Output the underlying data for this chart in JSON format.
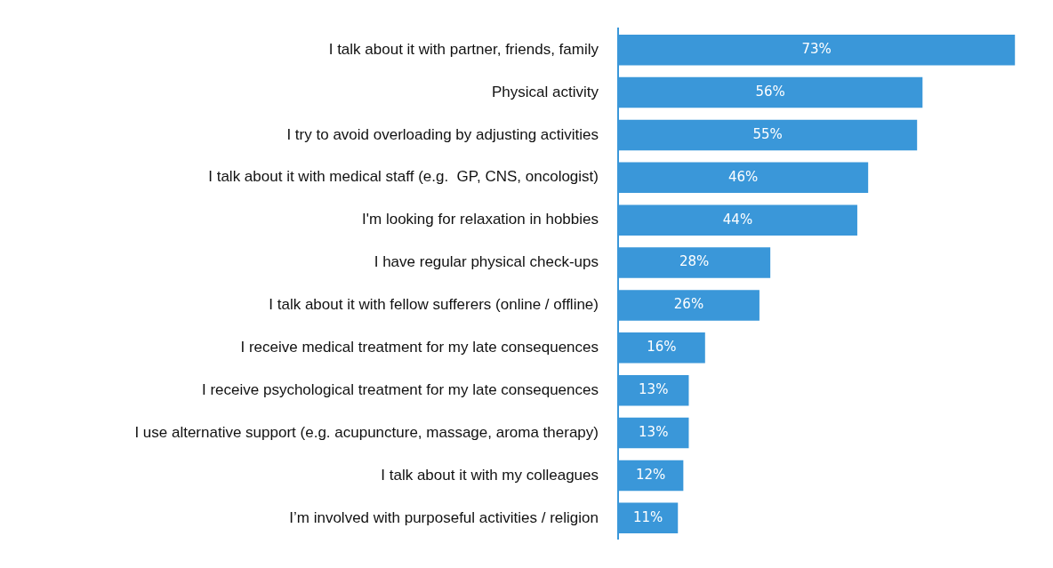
{
  "chart_data": {
    "type": "bar",
    "orientation": "horizontal",
    "categories": [
      "I talk about it with partner, friends, family",
      "Physical activity",
      "I try to avoid overloading by adjusting activities",
      "I talk about it with medical staff (e.g.  GP, CNS, oncologist)",
      "I'm looking for relaxation in hobbies",
      "I have regular physical check-ups",
      "I talk about it with fellow sufferers (online / offline)",
      "I receive medical treatment for my late consequences",
      "I receive psychological treatment for my late consequences",
      "I use alternative support (e.g. acupuncture, massage, aroma therapy)",
      "I talk about it with my colleagues",
      "I’m involved with purposeful activities / religion"
    ],
    "values": [
      73,
      56,
      55,
      46,
      44,
      28,
      26,
      16,
      13,
      13,
      12,
      11
    ],
    "value_labels": [
      "73%",
      "56%",
      "55%",
      "46%",
      "44%",
      "28%",
      "26%",
      "16%",
      "13%",
      "13%",
      "12%",
      "11%"
    ],
    "color": "#3a97d9",
    "legend": false
  }
}
